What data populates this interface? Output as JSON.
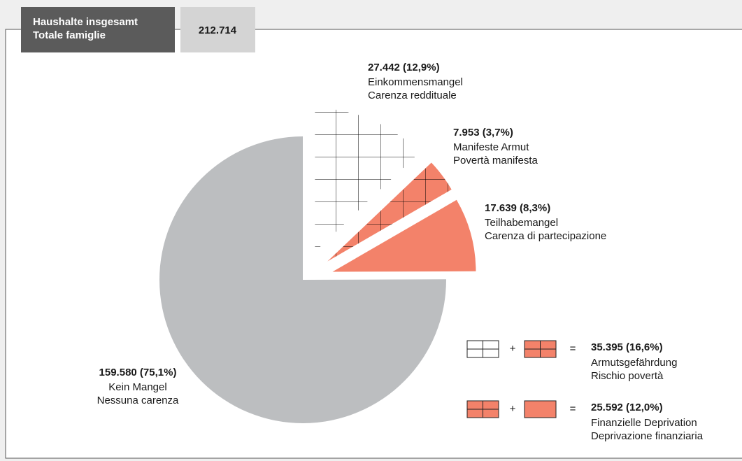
{
  "chart_data": {
    "type": "pie",
    "header": {
      "title_lines": [
        "Haushalte insgesamt",
        "Totale famiglie"
      ],
      "total": "212.714"
    },
    "slices": [
      {
        "label_lines": [
          "Einkommensmangel",
          "Carenza reddituale"
        ],
        "value": 27442,
        "value_label": "27.442 (12,9%)",
        "color": "#ffffff",
        "grid": true,
        "exploded": true
      },
      {
        "label_lines": [
          "Manifeste Armut",
          "Povertà manifesta"
        ],
        "value": 7953,
        "value_label": "7.953 (3,7%)",
        "color": "#f3826a",
        "grid": true,
        "exploded": true
      },
      {
        "label_lines": [
          "Teilhabemangel",
          "Carenza di partecipazione"
        ],
        "value": 17639,
        "value_label": "17.639 (8,3%)",
        "color": "#f3826a",
        "grid": false,
        "exploded": true
      },
      {
        "label_lines": [
          "Kein Mangel",
          "Nessuna carenza"
        ],
        "value": 159580,
        "value_label": "159.580 (75,1%)",
        "color": "#bcbec0",
        "grid": false,
        "exploded": false
      }
    ],
    "legend": [
      {
        "swatches": [
          {
            "color": "#ffffff",
            "grid": true
          },
          {
            "color": "#f3826a",
            "grid": true
          }
        ],
        "operator": "+",
        "equals": "=",
        "label": "35.395 (16,6%)",
        "lines": [
          "Armutsgefährdung",
          "Rischio povertà"
        ]
      },
      {
        "swatches": [
          {
            "color": "#f3826a",
            "grid": true
          },
          {
            "color": "#f3826a",
            "grid": false
          }
        ],
        "operator": "+",
        "equals": "=",
        "label": "25.592 (12,0%)",
        "lines": [
          "Finanzielle Deprivation",
          "Deprivazione finanziaria"
        ]
      }
    ]
  }
}
